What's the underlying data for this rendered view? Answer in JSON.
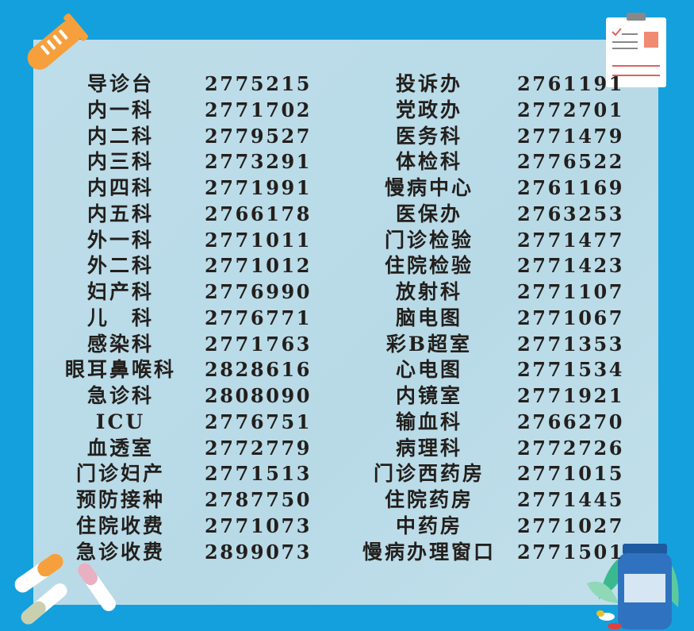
{
  "left_column": [
    {
      "name": "导诊台",
      "phone": "2775215"
    },
    {
      "name": "内一科",
      "phone": "2771702"
    },
    {
      "name": "内二科",
      "phone": "2779527"
    },
    {
      "name": "内三科",
      "phone": "2773291"
    },
    {
      "name": "内四科",
      "phone": "2771991"
    },
    {
      "name": "内五科",
      "phone": "2766178"
    },
    {
      "name": "外一科",
      "phone": "2771011"
    },
    {
      "name": "外二科",
      "phone": "2771012"
    },
    {
      "name": "妇产科",
      "phone": "2776990"
    },
    {
      "name": "儿　科",
      "phone": "2776771"
    },
    {
      "name": "感染科",
      "phone": "2771763"
    },
    {
      "name": "眼耳鼻喉科",
      "phone": "2828616"
    },
    {
      "name": "急诊科",
      "phone": "2808090"
    },
    {
      "name": "ICU",
      "phone": "2776751"
    },
    {
      "name": "血透室",
      "phone": "2772779"
    },
    {
      "name": "门诊妇产",
      "phone": "2771513"
    },
    {
      "name": "预防接种",
      "phone": "2787750"
    },
    {
      "name": "住院收费",
      "phone": "2771073"
    },
    {
      "name": "急诊收费",
      "phone": "2899073"
    }
  ],
  "right_column": [
    {
      "name": "投诉办",
      "phone": "2761191"
    },
    {
      "name": "党政办",
      "phone": "2772701"
    },
    {
      "name": "医务科",
      "phone": "2771479"
    },
    {
      "name": "体检科",
      "phone": "2776522"
    },
    {
      "name": "慢病中心",
      "phone": "2761169"
    },
    {
      "name": "医保办",
      "phone": "2763253"
    },
    {
      "name": "门诊检验",
      "phone": "2771477"
    },
    {
      "name": "住院检验",
      "phone": "2771423"
    },
    {
      "name": "放射科",
      "phone": "2771107"
    },
    {
      "name": "脑电图",
      "phone": "2771067"
    },
    {
      "name": "彩B超室",
      "phone": "2771353"
    },
    {
      "name": "心电图",
      "phone": "2771534"
    },
    {
      "name": "内镜室",
      "phone": "2771921"
    },
    {
      "name": "输血科",
      "phone": "2766270"
    },
    {
      "name": "病理科",
      "phone": "2772726"
    },
    {
      "name": "门诊西药房",
      "phone": "2771015"
    },
    {
      "name": "住院药房",
      "phone": "2771445"
    },
    {
      "name": "中药房",
      "phone": "2771027"
    },
    {
      "name": "慢病办理窗口",
      "phone": "2771501"
    }
  ],
  "colors": {
    "background": "#14a0dc",
    "panel": "#bddde9",
    "text": "#231f1c",
    "accent_orange": "#f5a03c"
  },
  "icons": [
    "test-tube-icon",
    "clipboard-icon",
    "pills-icon",
    "medicine-bottle-icon"
  ]
}
